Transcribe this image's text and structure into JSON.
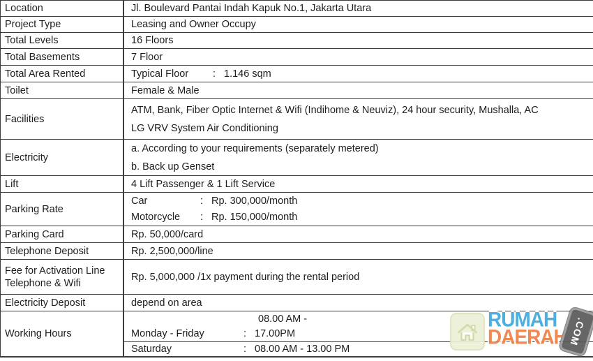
{
  "table": {
    "rows": [
      {
        "label": "Location",
        "type": "text",
        "value": "Jl. Boulevard Pantai Indah Kapuk No.1, Jakarta Utara"
      },
      {
        "label": "Project Type",
        "type": "text",
        "value": "Leasing and Owner Occupy"
      },
      {
        "label": "Total Levels",
        "type": "text",
        "value": "16 Floors"
      },
      {
        "label": "Total Basements",
        "type": "text",
        "value": "7 Floor"
      },
      {
        "label": "Total Area Rented",
        "type": "kv",
        "items": [
          {
            "k": "Typical Floor",
            "colon": ":",
            "v": "1.146 sqm"
          }
        ]
      },
      {
        "label": "Toilet",
        "type": "text",
        "value": "Female & Male"
      },
      {
        "label": "Facilities",
        "type": "lines",
        "lines": [
          "ATM, Bank, Fiber Optic Internet & Wifi (Indihome & Neuviz), 24 hour security, Mushalla, AC",
          "LG VRV System Air Conditioning"
        ]
      },
      {
        "label": "Electricity",
        "type": "lines",
        "lines": [
          "a. According to your requirements (separately metered)",
          "b. Back up Genset"
        ]
      },
      {
        "label": "Lift",
        "type": "text",
        "value": "4 Lift Passenger & 1 Lift Service"
      },
      {
        "label": "Parking Rate",
        "type": "kv",
        "items": [
          {
            "k": "Car",
            "colon": ":",
            "v": "Rp. 300,000/month"
          },
          {
            "k": "Motorcycle",
            "colon": ":",
            "v": "Rp. 150,000/month"
          }
        ]
      },
      {
        "label": "Parking Card",
        "type": "text",
        "value": "Rp. 50,000/card"
      },
      {
        "label": "Telephone Deposit",
        "type": "text",
        "value": "Rp. 2,500,000/line"
      },
      {
        "label": "Fee for Activation Line Telephone & Wifi",
        "type": "text",
        "value": "Rp. 5,000,000 /1x payment during the rental period"
      },
      {
        "label": "Electricity Deposit",
        "type": "text",
        "value": "depend on area"
      },
      {
        "label": "Working Hours",
        "type": "kv",
        "items": [
          {
            "k": "",
            "colon": "",
            "v": "08.00 AM -",
            "indent": true
          },
          {
            "k": "Monday - Friday",
            "colon": ":",
            "v": "17.00PM"
          },
          {
            "k": "Saturday",
            "colon": ":",
            "v": "08.00 AM - 13.00 PM",
            "rule_above": true
          }
        ]
      }
    ]
  },
  "logo": {
    "rumah": "RUMAH",
    "daerah": "DAERAH",
    "com": ".COM",
    "house_icon": "home-icon",
    "colors": {
      "rumah_blue": "#3FA8DC",
      "daerah_orange": "#EE8146",
      "badge_gray": "#5A5A5A",
      "house_bg": "#EDF0D6"
    }
  }
}
